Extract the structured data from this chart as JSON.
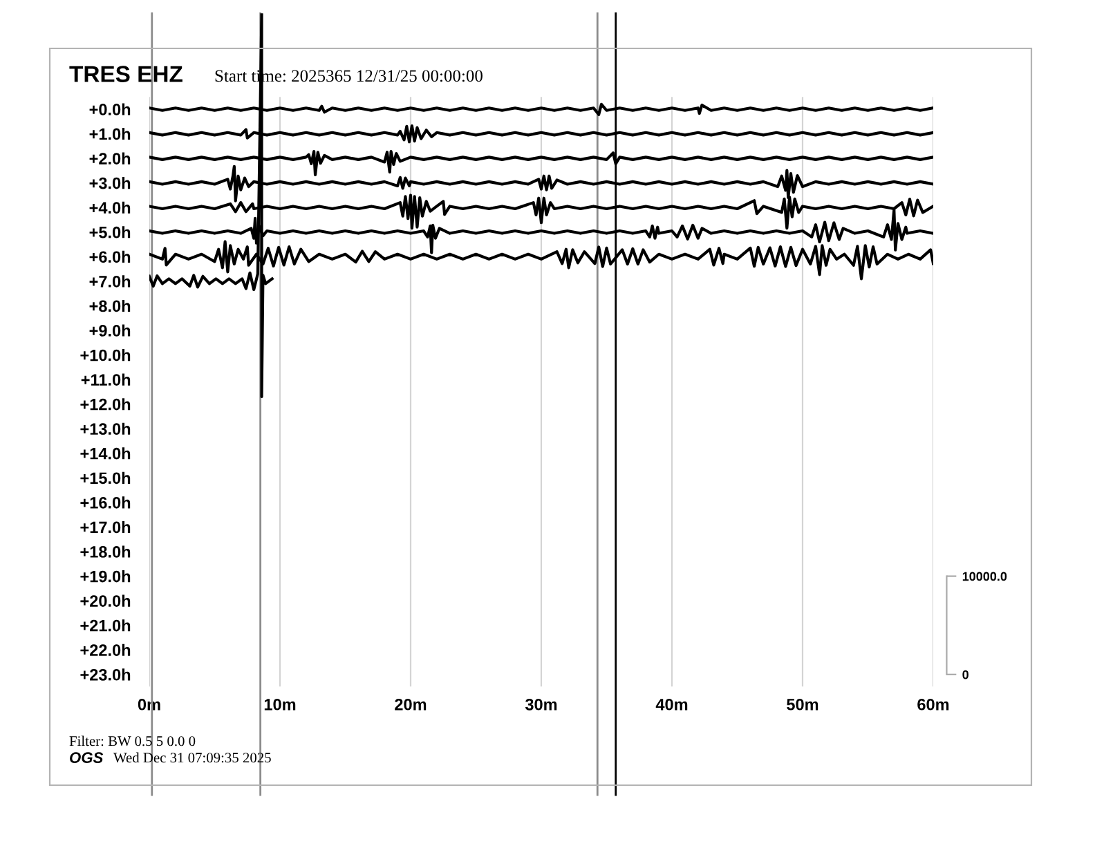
{
  "chart_data": {
    "type": "line",
    "title": "TRES EHZ",
    "subtitle": "Start time: 2025365 12/31/25 00:00:00",
    "annotations": [
      "Filter: BW 0.5 5 0.0 0",
      "OGS",
      "Wed Dec 31 07:09:35 2025"
    ],
    "xlim": [
      0,
      60
    ],
    "xticks": [
      {
        "value": 0,
        "label": "0m"
      },
      {
        "value": 10,
        "label": "10m"
      },
      {
        "value": 20,
        "label": "20m"
      },
      {
        "value": 30,
        "label": "30m"
      },
      {
        "value": 40,
        "label": "40m"
      },
      {
        "value": 50,
        "label": "50m"
      },
      {
        "value": 60,
        "label": "60m"
      }
    ],
    "ylim": [
      23.5,
      -3.9
    ],
    "yticks": [
      {
        "value": 0,
        "label": "+0.0h"
      },
      {
        "value": 1,
        "label": "+1.0h"
      },
      {
        "value": 2,
        "label": "+2.0h"
      },
      {
        "value": 3,
        "label": "+3.0h"
      },
      {
        "value": 4,
        "label": "+4.0h"
      },
      {
        "value": 5,
        "label": "+5.0h"
      },
      {
        "value": 6,
        "label": "+6.0h"
      },
      {
        "value": 7,
        "label": "+7.0h"
      },
      {
        "value": 8,
        "label": "+8.0h"
      },
      {
        "value": 9,
        "label": "+9.0h"
      },
      {
        "value": 10,
        "label": "+10.0h"
      },
      {
        "value": 11,
        "label": "+11.0h"
      },
      {
        "value": 12,
        "label": "+12.0h"
      },
      {
        "value": 13,
        "label": "+13.0h"
      },
      {
        "value": 14,
        "label": "+14.0h"
      },
      {
        "value": 15,
        "label": "+15.0h"
      },
      {
        "value": 16,
        "label": "+16.0h"
      },
      {
        "value": 17,
        "label": "+17.0h"
      },
      {
        "value": 18,
        "label": "+18.0h"
      },
      {
        "value": 19,
        "label": "+19.0h"
      },
      {
        "value": 20,
        "label": "+20.0h"
      },
      {
        "value": 21,
        "label": "+21.0h"
      },
      {
        "value": 22,
        "label": "+22.0h"
      },
      {
        "value": 23,
        "label": "+23.0h"
      }
    ],
    "y2lim": [
      -1250,
      67250
    ],
    "y2ticks": [
      0,
      {
        "value": 10000,
        "label": "10000.0"
      }
    ],
    "grid": "x",
    "ref_lines": [
      {
        "axis": "x",
        "value": 0.2,
        "color": "#8c8c8c"
      },
      {
        "axis": "x",
        "value": 8.5,
        "color": "#8c8c8c"
      },
      {
        "axis": "x",
        "value": 34.3,
        "color": "#8c8c8c"
      },
      {
        "axis": "x",
        "value": 35.7,
        "color": "#000000"
      }
    ],
    "series": [
      {
        "color": "#000000",
        "x": [
          0,
          1,
          2,
          3,
          4,
          5,
          6,
          7,
          8,
          9,
          10,
          11,
          12,
          13,
          13.2,
          13.4,
          14,
          15,
          16,
          17,
          18,
          19,
          20,
          21,
          22,
          23,
          24,
          25,
          26,
          27,
          28,
          29,
          30,
          31,
          32,
          33,
          34,
          34.4,
          34.6,
          35,
          36,
          37,
          38,
          39,
          40,
          41,
          42,
          42.1,
          42.3,
          43,
          44,
          45,
          46,
          47,
          48,
          49,
          50,
          51,
          52,
          53,
          54,
          55,
          56,
          57,
          58,
          59,
          60
        ],
        "values": [
          -0.05,
          0.05,
          -0.05,
          0.05,
          -0.05,
          0.05,
          -0.05,
          0.05,
          -0.05,
          0.05,
          -0.05,
          0.05,
          -0.05,
          0.05,
          -0.12,
          0.12,
          -0.05,
          0.05,
          -0.05,
          0.05,
          -0.05,
          0.05,
          -0.05,
          0.05,
          -0.05,
          0.05,
          -0.05,
          0.05,
          -0.05,
          0.05,
          -0.05,
          0.05,
          -0.05,
          0.05,
          -0.05,
          0.05,
          -0.05,
          0.22,
          -0.2,
          0.05,
          -0.05,
          0.05,
          -0.05,
          0.05,
          -0.05,
          0.05,
          -0.05,
          0.17,
          -0.17,
          0.05,
          -0.05,
          0.05,
          -0.05,
          0.05,
          -0.05,
          0.05,
          -0.05,
          0.05,
          -0.05,
          0.05,
          -0.05,
          0.05,
          -0.05,
          0.05,
          -0.05,
          0.05,
          -0.05
        ]
      },
      {
        "color": "#000000",
        "x": [
          0,
          1,
          2,
          3,
          4,
          5,
          6,
          7,
          7.4,
          7.5,
          8,
          9,
          10,
          11,
          12,
          13,
          14,
          15,
          16,
          17,
          18,
          19,
          19.2,
          19.5,
          19.7,
          19.9,
          20.1,
          20.3,
          20.5,
          20.8,
          21.2,
          21.6,
          22,
          23,
          24,
          25,
          26,
          27,
          28,
          29,
          30,
          31,
          32,
          33,
          34,
          35,
          36,
          37,
          38,
          39,
          40,
          41,
          42,
          43,
          44,
          45,
          46,
          47,
          48,
          49,
          50,
          51,
          52,
          53,
          54,
          55,
          56,
          57,
          58,
          59,
          60
        ],
        "values": [
          0.95,
          1.05,
          0.95,
          1.05,
          0.95,
          1.05,
          0.95,
          1.05,
          0.83,
          1.17,
          0.95,
          1.05,
          0.95,
          1.05,
          0.95,
          1.05,
          0.95,
          1.05,
          0.95,
          1.05,
          0.95,
          1.05,
          0.9,
          1.25,
          0.7,
          1.33,
          0.68,
          1.3,
          0.75,
          1.2,
          0.85,
          1.12,
          0.95,
          1.05,
          0.95,
          1.05,
          0.95,
          1.05,
          0.95,
          1.05,
          0.95,
          1.05,
          0.95,
          1.05,
          0.95,
          1.05,
          0.95,
          1.05,
          0.95,
          1.05,
          0.95,
          1.05,
          0.95,
          1.05,
          0.95,
          1.05,
          0.95,
          1.05,
          0.95,
          1.05,
          0.95,
          1.05,
          0.95,
          1.05,
          0.95,
          1.05,
          0.95,
          1.05,
          0.95,
          1.05,
          0.95
        ]
      },
      {
        "color": "#000000",
        "x": [
          0,
          1,
          2,
          3,
          4,
          5,
          6,
          7,
          8,
          9,
          10,
          11,
          12,
          12.2,
          12.4,
          12.6,
          12.7,
          12.9,
          13.1,
          13.4,
          14,
          15,
          16,
          17,
          18,
          18.2,
          18.4,
          18.5,
          18.7,
          18.9,
          19.2,
          20,
          21,
          22,
          23,
          24,
          25,
          26,
          27,
          28,
          29,
          30,
          31,
          32,
          33,
          34,
          35,
          35.5,
          35.7,
          36,
          37,
          38,
          39,
          40,
          41,
          42,
          43,
          44,
          45,
          46,
          47,
          48,
          49,
          50,
          51,
          52,
          53,
          54,
          55,
          56,
          57,
          58,
          59,
          60
        ],
        "values": [
          1.95,
          2.05,
          1.95,
          2.05,
          1.95,
          2.05,
          1.95,
          2.05,
          1.95,
          2.05,
          1.95,
          2.05,
          1.95,
          1.85,
          2.22,
          1.72,
          2.67,
          1.75,
          2.2,
          1.88,
          2.05,
          1.95,
          2.05,
          1.95,
          2.15,
          1.75,
          2.56,
          1.72,
          2.25,
          1.8,
          2.12,
          1.95,
          2.05,
          1.95,
          2.05,
          1.95,
          2.05,
          1.95,
          2.05,
          1.95,
          2.05,
          1.95,
          2.05,
          1.95,
          2.05,
          1.95,
          2.05,
          1.78,
          2.22,
          1.95,
          2.05,
          1.95,
          2.05,
          1.95,
          2.05,
          1.95,
          2.05,
          1.95,
          2.05,
          1.95,
          2.05,
          1.95,
          2.05,
          1.95,
          2.05,
          1.95,
          2.05,
          1.95,
          2.05,
          1.95,
          2.05,
          1.95,
          2.05,
          1.95
        ]
      },
      {
        "color": "#000000",
        "x": [
          0,
          1,
          2,
          3,
          4,
          5,
          6,
          6.2,
          6.4,
          6.5,
          6.6,
          6.8,
          7,
          7.3,
          7.6,
          8,
          9,
          10,
          11,
          12,
          13,
          14,
          15,
          16,
          17,
          18,
          19,
          19.2,
          19.4,
          19.6,
          19.9,
          20,
          21,
          22,
          23,
          24,
          25,
          26,
          27,
          28,
          29,
          29.8,
          30,
          30.2,
          30.4,
          30.6,
          30.8,
          31.2,
          32,
          33,
          34,
          35,
          36,
          37,
          38,
          39,
          40,
          41,
          42,
          43,
          44,
          45,
          46,
          47,
          48.1,
          48.4,
          48.7,
          48.8,
          48.9,
          49.1,
          49.3,
          49.6,
          50,
          51,
          52,
          53,
          54,
          55,
          56,
          57,
          58,
          59,
          60
        ],
        "values": [
          2.95,
          3.05,
          2.95,
          3.05,
          2.95,
          3.05,
          2.85,
          3.25,
          2.72,
          2.33,
          3.73,
          2.72,
          3.28,
          2.8,
          3.15,
          2.95,
          3.05,
          2.95,
          3.05,
          2.95,
          3.05,
          2.95,
          3.05,
          2.95,
          3.05,
          2.95,
          3.12,
          2.78,
          3.22,
          2.8,
          3.12,
          2.95,
          3.05,
          2.95,
          3.05,
          2.95,
          3.05,
          2.95,
          3.05,
          2.95,
          3.05,
          2.85,
          3.25,
          2.72,
          3.28,
          2.72,
          3.22,
          2.88,
          3.05,
          2.95,
          3.05,
          2.95,
          3.05,
          2.95,
          3.05,
          2.95,
          3.05,
          2.95,
          3.05,
          2.95,
          3.05,
          2.95,
          3.05,
          2.95,
          3.15,
          2.72,
          3.3,
          2.49,
          3.6,
          2.62,
          3.38,
          2.7,
          3.15,
          2.95,
          3.05,
          2.95,
          3.05,
          2.95,
          3.05,
          2.95,
          3.05,
          2.95,
          3.05
        ]
      },
      {
        "color": "#000000",
        "x": [
          0,
          1,
          2,
          3,
          4,
          5,
          6.2,
          6.6,
          7,
          7.4,
          7.9,
          8,
          9,
          10,
          11,
          12,
          13,
          14,
          15,
          16,
          17,
          18,
          19.2,
          19.4,
          19.6,
          19.8,
          20,
          20.1,
          20.3,
          20.5,
          20.7,
          20.9,
          21.2,
          21.5,
          22,
          22.5,
          22.6,
          23,
          24,
          25,
          26,
          27,
          28,
          29.4,
          29.6,
          29.8,
          30,
          30.2,
          30.4,
          30.7,
          31,
          32,
          33,
          34,
          35,
          36,
          37,
          38,
          39,
          40,
          41,
          42,
          43,
          44,
          45,
          46.3,
          46.5,
          47,
          48.4,
          48.6,
          48.8,
          49,
          49.2,
          49.4,
          49.7,
          50,
          51,
          52,
          53,
          54,
          55,
          56,
          57,
          57.6,
          57.9,
          58.2,
          58.5,
          58.8,
          59.2,
          60
        ],
        "values": [
          3.95,
          4.05,
          3.95,
          4.05,
          3.95,
          4.05,
          3.85,
          4.17,
          3.8,
          4.17,
          3.85,
          4.05,
          3.95,
          4.05,
          3.95,
          4.05,
          3.95,
          4.05,
          3.95,
          4.05,
          3.95,
          4.05,
          3.8,
          4.35,
          3.55,
          4.45,
          3.5,
          4.84,
          3.55,
          4.8,
          3.6,
          4.35,
          3.75,
          4.15,
          3.95,
          3.75,
          4.28,
          3.95,
          4.05,
          3.95,
          4.05,
          3.95,
          4.05,
          3.8,
          4.3,
          3.62,
          4.62,
          3.62,
          4.3,
          3.8,
          4.05,
          3.95,
          4.05,
          3.95,
          4.05,
          3.95,
          4.05,
          3.95,
          4.05,
          3.95,
          4.05,
          3.95,
          4.05,
          3.95,
          4.05,
          3.72,
          4.25,
          3.95,
          4.2,
          3.65,
          4.84,
          3.58,
          4.38,
          3.65,
          4.2,
          3.95,
          4.05,
          3.95,
          4.05,
          3.95,
          4.05,
          3.95,
          4.05,
          3.8,
          4.3,
          3.66,
          4.34,
          3.7,
          4.2,
          3.95
        ]
      },
      {
        "color": "#000000",
        "x": [
          0,
          1,
          2,
          3,
          4,
          5,
          6,
          7,
          7.8,
          8,
          8.1,
          8.2,
          8.4,
          8.7,
          9,
          10,
          11,
          12,
          13,
          14,
          15,
          16,
          17,
          18,
          19,
          20,
          21,
          21.3,
          21.5,
          21.6,
          21.7,
          21.9,
          22.2,
          23,
          24,
          25,
          26,
          27,
          28,
          29,
          30,
          31,
          32,
          33,
          34,
          35,
          36,
          37,
          38,
          38.3,
          38.5,
          38.7,
          38.9,
          39,
          40,
          40.4,
          40.8,
          41.2,
          41.6,
          42,
          42.3,
          43,
          44,
          45,
          46,
          47,
          48,
          49,
          50,
          50.7,
          51,
          51.3,
          51.7,
          52,
          52.4,
          52.8,
          53.1,
          54,
          55,
          56.2,
          56.5,
          56.8,
          57,
          57.1,
          57.3,
          57.6,
          57.9,
          58,
          59,
          60
        ],
        "values": [
          4.95,
          5.05,
          4.95,
          5.05,
          4.95,
          5.05,
          4.95,
          5.05,
          4.85,
          5.25,
          4.44,
          5.45,
          4.75,
          5.15,
          4.95,
          5.05,
          4.95,
          5.05,
          4.95,
          5.05,
          4.95,
          5.05,
          4.95,
          5.05,
          4.95,
          5.05,
          4.95,
          5.2,
          4.75,
          5.84,
          4.72,
          5.25,
          4.85,
          5.05,
          4.95,
          5.05,
          4.95,
          5.05,
          4.95,
          5.05,
          4.95,
          5.05,
          4.95,
          5.05,
          4.95,
          5.05,
          4.95,
          5.05,
          4.95,
          5.2,
          4.75,
          5.25,
          4.8,
          5.05,
          4.95,
          5.2,
          4.75,
          5.28,
          4.72,
          5.25,
          4.85,
          5.05,
          4.95,
          5.05,
          4.95,
          5.05,
          4.95,
          5.05,
          4.95,
          5.2,
          4.7,
          5.4,
          4.6,
          5.35,
          4.62,
          5.3,
          4.85,
          5.05,
          4.95,
          5.2,
          4.7,
          5.3,
          4.1,
          5.73,
          4.65,
          5.3,
          4.8,
          5.05,
          4.95,
          5.05
        ]
      },
      {
        "color": "#000000",
        "x": [
          0,
          1,
          1.2,
          1.3,
          2,
          3,
          4,
          5,
          5.3,
          5.6,
          5.8,
          6,
          6.2,
          6.5,
          6.8,
          7.2,
          7.5,
          7.6,
          8.2,
          8.7,
          9.1,
          9.5,
          9.9,
          10.3,
          10.7,
          11.1,
          11.6,
          12.2,
          13,
          14,
          15,
          15.8,
          16.3,
          16.8,
          17.3,
          18,
          19,
          20,
          21,
          22,
          23,
          24,
          25,
          26,
          27,
          28,
          29,
          30,
          31.2,
          31.6,
          31.9,
          32.1,
          32.4,
          32.8,
          33.3,
          34.1,
          34.4,
          34.7,
          35,
          35.3,
          36.2,
          36.6,
          37,
          37.4,
          37.8,
          38.3,
          39,
          40,
          41,
          42,
          42.9,
          43.2,
          43.6,
          43.9,
          44,
          45,
          46,
          46.3,
          46.6,
          47,
          47.5,
          47.9,
          48.3,
          48.7,
          49.1,
          49.5,
          50,
          50.6,
          51,
          51.3,
          51.5,
          51.8,
          52.1,
          52.6,
          53.2,
          53.9,
          54.2,
          54.5,
          54.8,
          55.1,
          55.4,
          55.7,
          56.5,
          57.3,
          58.1,
          59,
          59.8,
          60
        ],
        "values": [
          5.9,
          6.1,
          5.66,
          6.34,
          5.9,
          6.1,
          5.9,
          6.2,
          5.7,
          6.45,
          5.39,
          6.62,
          5.55,
          6.3,
          5.7,
          6.1,
          5.6,
          6.35,
          5.9,
          6.3,
          5.66,
          6.38,
          5.62,
          6.34,
          5.6,
          6.3,
          5.7,
          6.2,
          5.9,
          6.1,
          5.9,
          6.22,
          5.78,
          6.2,
          5.8,
          6.1,
          5.9,
          6.1,
          5.9,
          6.1,
          5.9,
          6.1,
          5.9,
          6.1,
          5.9,
          6.1,
          5.9,
          6.1,
          5.8,
          6.28,
          5.7,
          6.45,
          5.72,
          6.25,
          5.8,
          6.28,
          5.61,
          6.4,
          5.65,
          6.3,
          5.72,
          6.3,
          5.68,
          6.3,
          5.72,
          6.22,
          5.9,
          6.1,
          5.9,
          6.1,
          5.7,
          6.34,
          5.66,
          6.28,
          5.9,
          6.1,
          5.65,
          6.39,
          5.62,
          6.3,
          5.64,
          6.38,
          5.6,
          6.4,
          5.62,
          6.36,
          5.7,
          6.3,
          5.58,
          6.73,
          5.55,
          6.35,
          5.7,
          6.1,
          5.9,
          6.35,
          5.58,
          6.9,
          5.55,
          6.42,
          5.6,
          6.3,
          5.9,
          6.1,
          5.9,
          6.1,
          5.72,
          6.28
        ]
      },
      {
        "color": "#000000",
        "x": [
          0,
          0.3,
          0.6,
          1,
          1.5,
          2,
          2.5,
          3.1,
          3.4,
          3.7,
          4.1,
          4.6,
          5.1,
          5.6,
          6.1,
          6.6,
          7.1,
          7.4,
          7.7,
          8,
          8.3,
          8.6,
          8.6,
          8.7,
          8.9,
          9.4
        ],
        "values": [
          6.8,
          7.2,
          6.78,
          7.1,
          6.9,
          7.1,
          6.9,
          7.2,
          6.76,
          7.24,
          6.8,
          7.1,
          6.9,
          7.1,
          6.9,
          7.1,
          6.9,
          7.3,
          6.66,
          7.34,
          6.7,
          -3.88,
          11.7,
          6.75,
          7.1,
          6.9
        ]
      }
    ]
  }
}
